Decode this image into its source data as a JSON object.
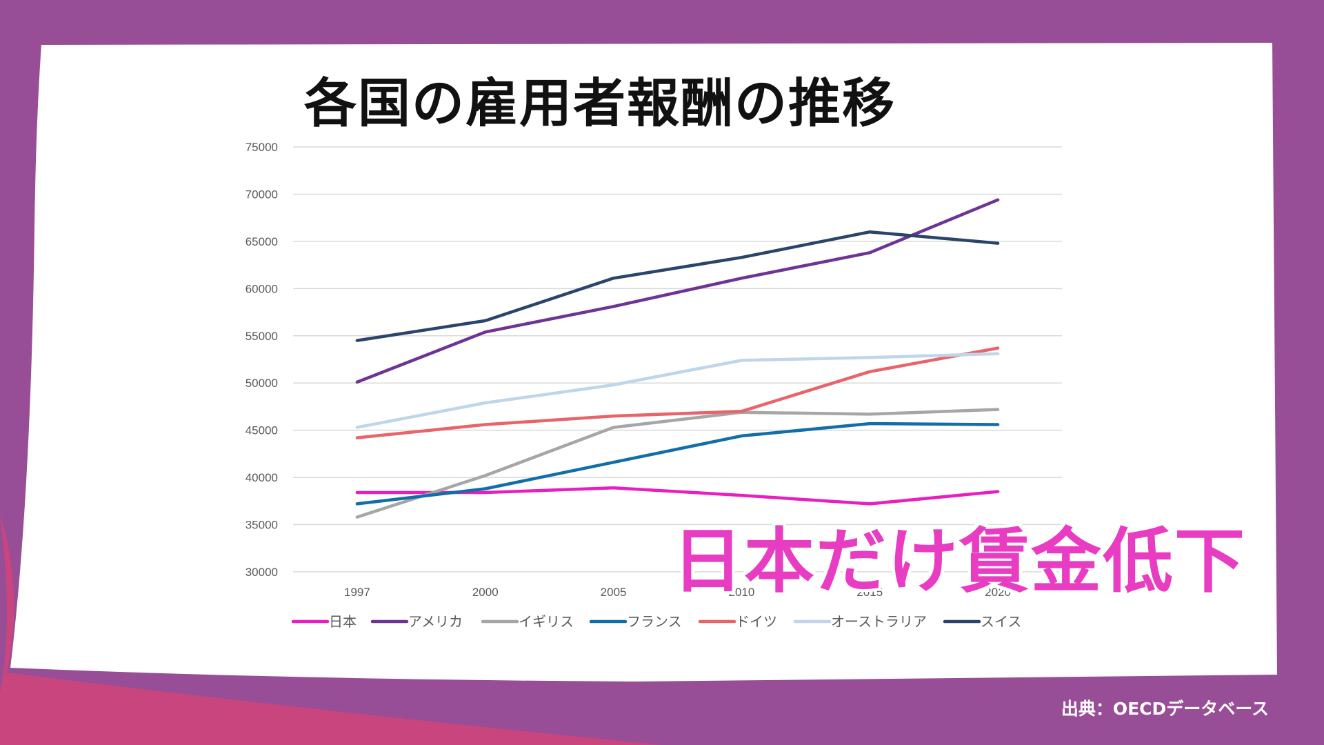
{
  "slide": {
    "title": "各国の雇用者報酬の推移",
    "callout": "日本だけ賃金低下",
    "source": "出典：OECDデータベース"
  },
  "colors": {
    "background": "#984d97",
    "accent_bottom_left": "#c8457e",
    "card": "#ffffff",
    "callout": "#e83dc3"
  },
  "chart_data": {
    "type": "line",
    "title": "",
    "xlabel": "",
    "ylabel": "",
    "x": [
      "1997",
      "2000",
      "2005",
      "2010",
      "2015",
      "2020"
    ],
    "ylim": [
      30000,
      75000
    ],
    "yticks": [
      30000,
      35000,
      40000,
      45000,
      50000,
      55000,
      60000,
      65000,
      70000,
      75000
    ],
    "grid": true,
    "legend_position": "bottom",
    "series": [
      {
        "name": "日本",
        "color": "#e81fc0",
        "values": [
          38400,
          38400,
          38900,
          38100,
          37200,
          38500
        ]
      },
      {
        "name": "アメリカ",
        "color": "#6e3494",
        "values": [
          50100,
          55400,
          58100,
          61100,
          63800,
          69400
        ]
      },
      {
        "name": "イギリス",
        "color": "#a6a6a6",
        "values": [
          35800,
          40200,
          45300,
          46900,
          46700,
          47200
        ]
      },
      {
        "name": "フランス",
        "color": "#126ea8",
        "values": [
          37200,
          38800,
          41600,
          44400,
          45700,
          45600
        ]
      },
      {
        "name": "ドイツ",
        "color": "#e8646b",
        "values": [
          44200,
          45600,
          46500,
          47000,
          51200,
          53700
        ]
      },
      {
        "name": "オーストラリア",
        "color": "#bfd6ea",
        "values": [
          45300,
          47900,
          49800,
          52400,
          52700,
          53100
        ]
      },
      {
        "name": "スイス",
        "color": "#2a4569",
        "values": [
          54500,
          56600,
          61100,
          63300,
          66000,
          64800
        ]
      }
    ]
  }
}
